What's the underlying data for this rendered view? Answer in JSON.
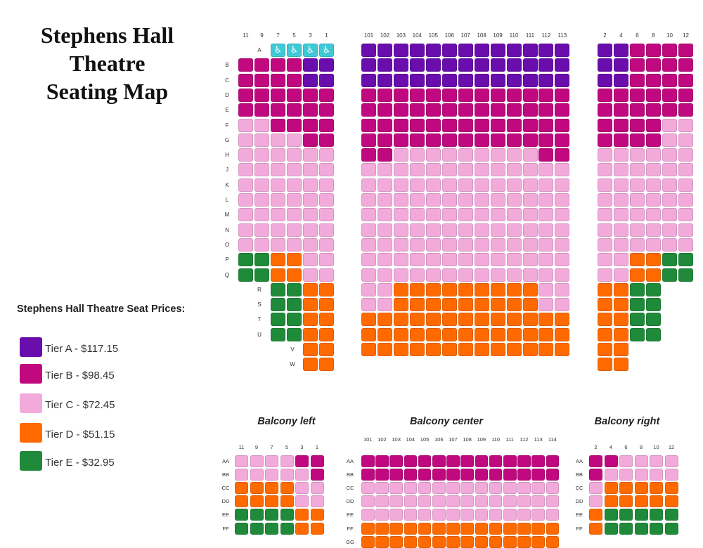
{
  "title_lines": [
    "Stephens Hall",
    "Theatre",
    "Seating Map"
  ],
  "prices_heading": "Stephens Hall Theatre Seat Prices:",
  "tiers": [
    {
      "code": "A",
      "label": "Tier A - $117.15",
      "color": "#6a0dad"
    },
    {
      "code": "B",
      "label": "Tier B - $98.45",
      "color": "#c0087f"
    },
    {
      "code": "C",
      "label": "Tier C - $72.45",
      "color": "#f2aadb"
    },
    {
      "code": "D",
      "label": "Tier D - $51.15",
      "color": "#ff6a00"
    },
    {
      "code": "E",
      "label": "Tier E - $32.95",
      "color": "#1f8a3a"
    }
  ],
  "wheelchair_color": "#3fc9d6",
  "wheelchair_icon": "wheelchair-icon",
  "orchestra": {
    "left": {
      "columns": [
        "11",
        "9",
        "7",
        "5",
        "3",
        "1"
      ],
      "rows": [
        {
          "row": "A",
          "seats": "..WWWW"
        },
        {
          "row": "B",
          "seats": "BBBBAA"
        },
        {
          "row": "C",
          "seats": "BBBBAA"
        },
        {
          "row": "D",
          "seats": "BBBBBB"
        },
        {
          "row": "E",
          "seats": "BBBBBB"
        },
        {
          "row": "F",
          "seats": "CCBBBB"
        },
        {
          "row": "G",
          "seats": "CCCCBB"
        },
        {
          "row": "H",
          "seats": "CCCCCC"
        },
        {
          "row": "J",
          "seats": "CCCCCC"
        },
        {
          "row": "K",
          "seats": "CCCCCC"
        },
        {
          "row": "L",
          "seats": "CCCCCC"
        },
        {
          "row": "M",
          "seats": "CCCCCC"
        },
        {
          "row": "N",
          "seats": "CCCCCC"
        },
        {
          "row": "O",
          "seats": "CCCCCC"
        },
        {
          "row": "P",
          "seats": "EEDDCC"
        },
        {
          "row": "Q",
          "seats": "EEDDCC"
        },
        {
          "row": "R",
          "seats": "..EEDD"
        },
        {
          "row": "S",
          "seats": "..EEDD"
        },
        {
          "row": "T",
          "seats": "..EEDD"
        },
        {
          "row": "U",
          "seats": "..EEDD"
        },
        {
          "row": "V",
          "seats": "....DD"
        },
        {
          "row": "W",
          "seats": "....DD"
        }
      ]
    },
    "center": {
      "columns": [
        "101",
        "102",
        "103",
        "104",
        "105",
        "106",
        "107",
        "108",
        "109",
        "110",
        "111",
        "112",
        "113"
      ],
      "rows": [
        "AAAAAAAAAAAAA",
        "AAAAAAAAAAAAA",
        "AAAAAAAAAAAAA",
        "BBBBBBBBBBBBB",
        "BBBBBBBBBBBBB",
        "BBBBBBBBBBBBB",
        "BBBBBBBBBBBBB",
        "BBCCCCCCCCCBB",
        "CCCCCCCCCCCCC",
        "CCCCCCCCCCCCC",
        "CCCCCCCCCCCCC",
        "CCCCCCCCCCCCC",
        "CCCCCCCCCCCCC",
        "CCCCCCCCCCCCC",
        "CCCCCCCCCCCCC",
        "CCCCCCCCCCCCC",
        "CCDDDDDDDDDCC",
        "CCDDDDDDDDDCC",
        "DDDDDDDDDDDDD",
        "DDDDDDDDDDDDD",
        "DDDDDDDDDDDDD"
      ]
    },
    "right": {
      "columns": [
        "2",
        "4",
        "6",
        "8",
        "10",
        "12"
      ],
      "rows": [
        "AABBBB",
        "AABBBB",
        "AABBBB",
        "BBBBBB",
        "BBBBBB",
        "BBBBCC",
        "BBBBCC",
        "CCCCCC",
        "CCCCCC",
        "CCCCCC",
        "CCCCCC",
        "CCCCCC",
        "CCCCCC",
        "CCCCCC",
        "CCDDEE",
        "CCDDEE",
        "DDEE..",
        "DDEE..",
        "DDEE..",
        "DDEE..",
        "DD....",
        "DD...."
      ]
    }
  },
  "balcony": {
    "left": {
      "title": "Balcony left",
      "columns": [
        "11",
        "9",
        "7",
        "5",
        "3",
        "1"
      ],
      "rows": [
        {
          "row": "AA",
          "seats": "CCCCBB"
        },
        {
          "row": "BB",
          "seats": "CCCCCB"
        },
        {
          "row": "CC",
          "seats": "DDDDCC"
        },
        {
          "row": "DD",
          "seats": "DDDDCC"
        },
        {
          "row": "EE",
          "seats": "EEEEDD"
        },
        {
          "row": "FF",
          "seats": "EEEEDD"
        }
      ]
    },
    "center": {
      "title": "Balcony center",
      "columns": [
        "101",
        "102",
        "103",
        "104",
        "105",
        "106",
        "107",
        "108",
        "109",
        "110",
        "111",
        "112",
        "113",
        "114"
      ],
      "rows": [
        {
          "row": "AA",
          "seats": "BBBBBBBBBBBBBB"
        },
        {
          "row": "BB",
          "seats": "BBBBBBBBBBBBBB"
        },
        {
          "row": "CC",
          "seats": "CCCCCCCCCCCCCC"
        },
        {
          "row": "DD",
          "seats": "CCCCCCCCCCCCCC"
        },
        {
          "row": "EE",
          "seats": "CCCCCCCCCCCCCC"
        },
        {
          "row": "FF",
          "seats": "DDDDDDDDDDDDDD"
        },
        {
          "row": "GG",
          "seats": "DDDDDDDDDDDDDD"
        }
      ]
    },
    "right": {
      "title": "Balcony right",
      "columns": [
        "2",
        "4",
        "6",
        "8",
        "10",
        "12"
      ],
      "rows": [
        {
          "row": "AA",
          "seats": "BBCCCC"
        },
        {
          "row": "BB",
          "seats": "BCCCCC"
        },
        {
          "row": "CC",
          "seats": "CDDDDD"
        },
        {
          "row": "DD",
          "seats": "CDDDDD"
        },
        {
          "row": "EE",
          "seats": "DEEEEE"
        },
        {
          "row": "FF",
          "seats": "DEEEEE"
        }
      ]
    }
  }
}
